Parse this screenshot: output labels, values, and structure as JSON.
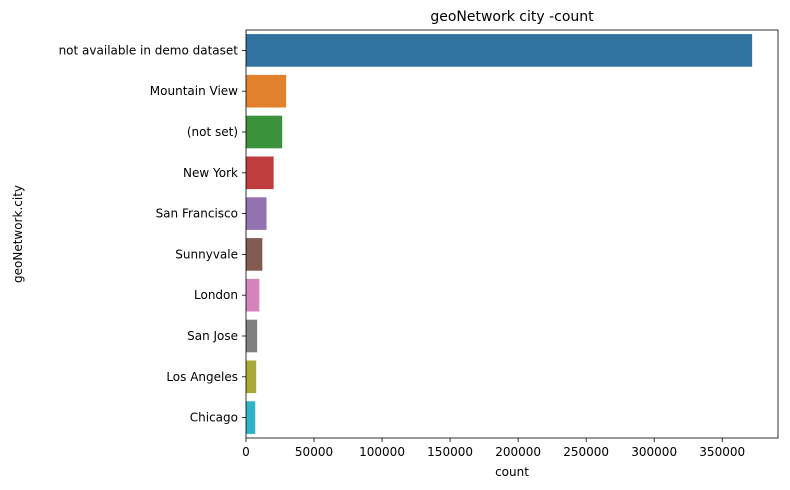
{
  "chart_data": {
    "type": "bar",
    "orientation": "horizontal",
    "title": "geoNetwork city -count",
    "xlabel": "count",
    "ylabel": "geoNetwork.city",
    "categories": [
      "not available in demo dataset",
      "Mountain View",
      "(not set)",
      "New York",
      "San Francisco",
      "Sunnyvale",
      "London",
      "San Jose",
      "Los Angeles",
      "Chicago"
    ],
    "values": [
      372000,
      29500,
      26600,
      20300,
      15100,
      12000,
      9800,
      8200,
      7500,
      6800
    ],
    "xlim": [
      0,
      391000
    ],
    "xticks": [
      0,
      50000,
      100000,
      150000,
      200000,
      250000,
      300000,
      350000
    ],
    "colors": [
      "#3274a1",
      "#e1812c",
      "#3a923a",
      "#c03d3e",
      "#9372b2",
      "#845b53",
      "#d684bd",
      "#7f7f7f",
      "#a9aa35",
      "#2eb4c4"
    ],
    "grid": false,
    "legend": "none"
  }
}
